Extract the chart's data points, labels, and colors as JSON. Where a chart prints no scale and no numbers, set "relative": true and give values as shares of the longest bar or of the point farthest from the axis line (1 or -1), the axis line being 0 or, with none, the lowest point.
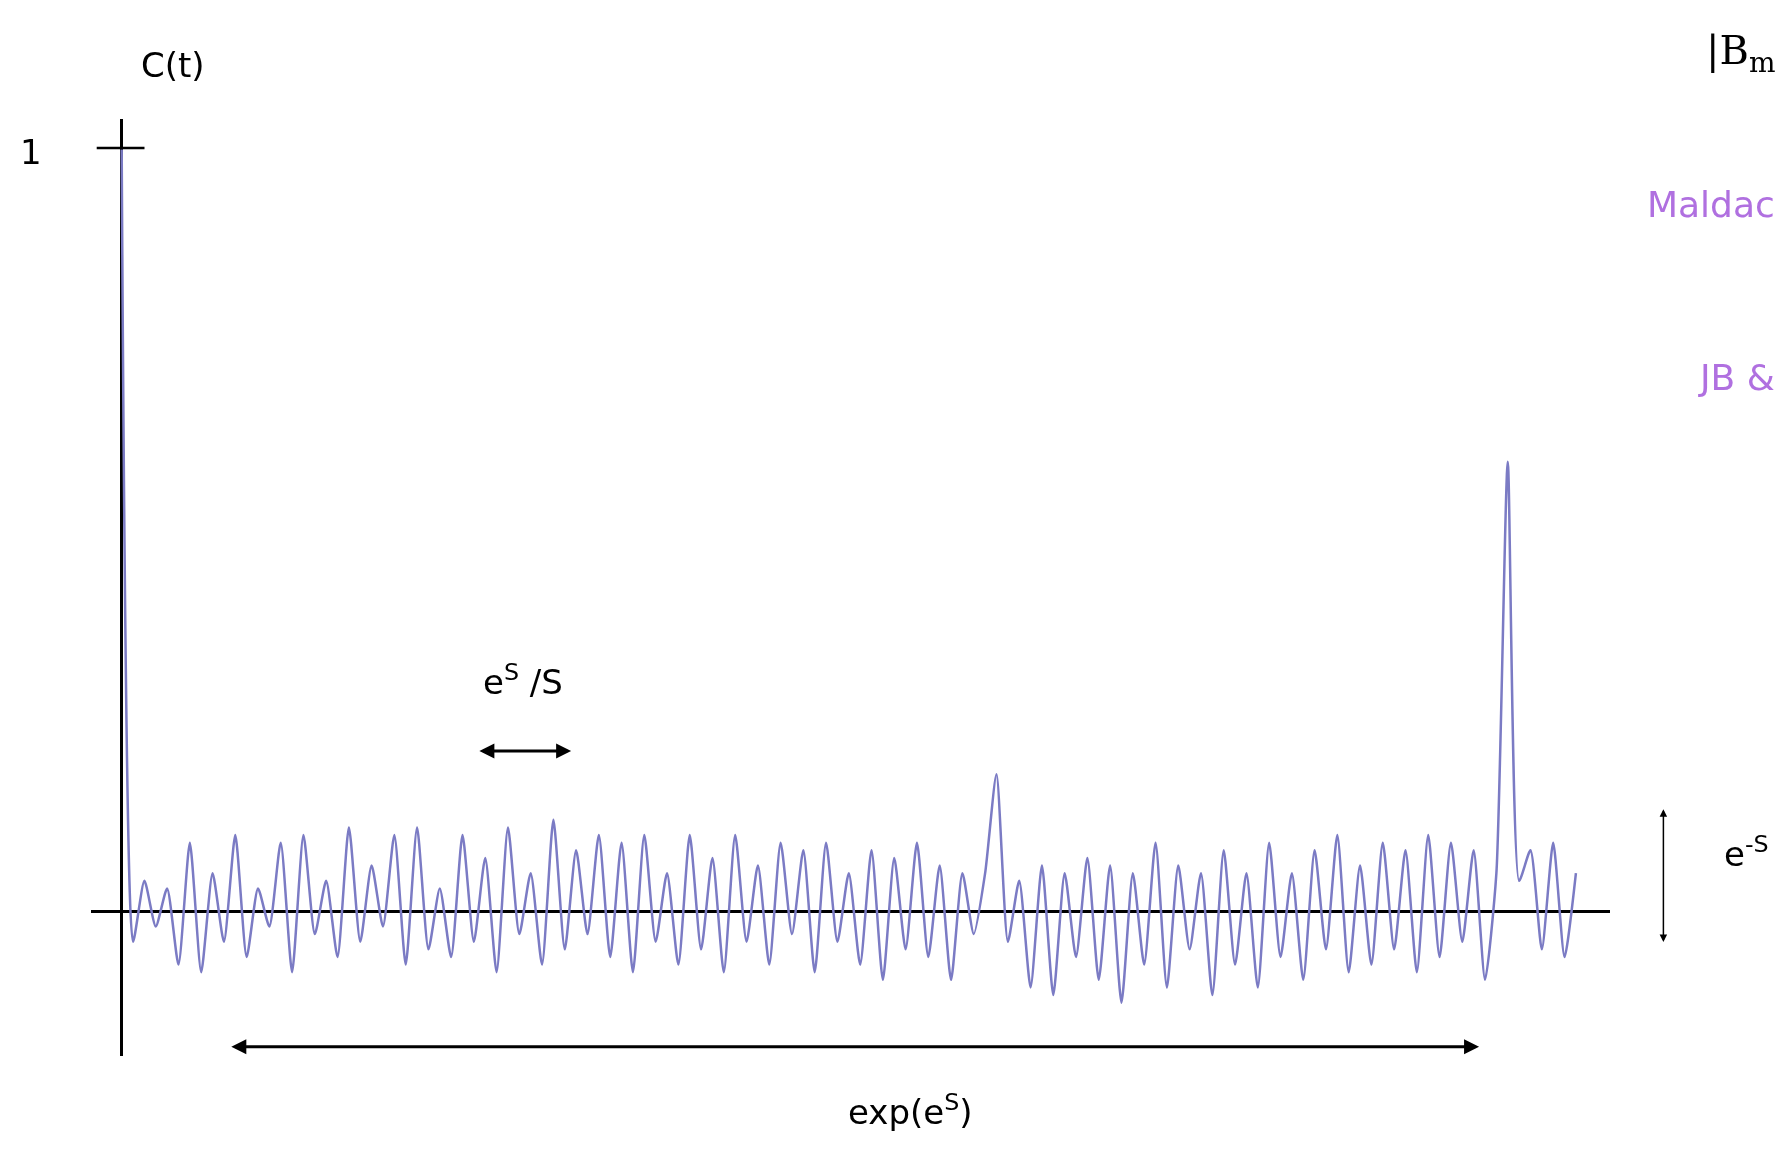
{
  "chart_data": {
    "type": "line",
    "relative": true,
    "ylabel": "C(t)",
    "categories": [
      null,
      null,
      null,
      null,
      null,
      null,
      null,
      null,
      null,
      null,
      null,
      null,
      null,
      null,
      null,
      null,
      null,
      null,
      null,
      null,
      null,
      null,
      null,
      null,
      null,
      null,
      null,
      null,
      null,
      null,
      null,
      null,
      null,
      null,
      null,
      null,
      null,
      null,
      null,
      null,
      null,
      null,
      null,
      null,
      null,
      null,
      null,
      null,
      null,
      null,
      null,
      null,
      null,
      null,
      null,
      null,
      null,
      null,
      null,
      null,
      null,
      null,
      null,
      null,
      null,
      null,
      null,
      null,
      null,
      null,
      null,
      null,
      null,
      null,
      null,
      null,
      null,
      null,
      null,
      null,
      null,
      null,
      null,
      null,
      null,
      null,
      null,
      null,
      null,
      null,
      null,
      null,
      null,
      null,
      null,
      null,
      null,
      null,
      null,
      null,
      null,
      null,
      null,
      null,
      null,
      null,
      null,
      null,
      null,
      null,
      null,
      null,
      null,
      null,
      null,
      null,
      null,
      null,
      null,
      null,
      null,
      null,
      null,
      null,
      null,
      null,
      null,
      null,
      null
    ],
    "series": [
      {
        "color": "#7b7bc4",
        "values": [
          1.0,
          -0.04,
          0.04,
          -0.02,
          0.03,
          -0.07,
          0.09,
          -0.08,
          0.05,
          -0.04,
          0.1,
          -0.06,
          0.03,
          -0.02,
          0.09,
          -0.08,
          0.1,
          -0.03,
          0.04,
          -0.06,
          0.11,
          -0.04,
          0.06,
          -0.02,
          0.1,
          -0.07,
          0.11,
          -0.05,
          0.03,
          -0.06,
          0.1,
          -0.04,
          0.07,
          -0.08,
          0.11,
          -0.03,
          0.05,
          -0.07,
          0.12,
          -0.05,
          0.08,
          -0.03,
          0.1,
          -0.06,
          0.09,
          -0.08,
          0.1,
          -0.04,
          0.05,
          -0.07,
          0.1,
          -0.05,
          0.07,
          -0.08,
          0.1,
          -0.04,
          0.06,
          -0.07,
          0.09,
          -0.03,
          0.08,
          -0.08,
          0.09,
          -0.04,
          0.05,
          -0.07,
          0.08,
          -0.09,
          0.07,
          -0.05,
          0.09,
          -0.06,
          0.06,
          -0.09,
          0.05,
          -0.03,
          0.05,
          0.18,
          -0.04,
          0.04,
          -0.1,
          0.06,
          -0.11,
          0.05,
          -0.06,
          0.07,
          -0.09,
          0.06,
          -0.12,
          0.05,
          -0.07,
          0.09,
          -0.1,
          0.06,
          -0.05,
          0.05,
          -0.11,
          0.08,
          -0.07,
          0.05,
          -0.1,
          0.09,
          -0.06,
          0.05,
          -0.09,
          0.08,
          -0.05,
          0.1,
          -0.08,
          0.06,
          -0.07,
          0.09,
          -0.05,
          0.08,
          -0.08,
          0.1,
          -0.06,
          0.09,
          -0.04,
          0.08,
          -0.09,
          0.05,
          0.59,
          0.04,
          0.08,
          -0.05,
          0.09,
          -0.06,
          0.05
        ]
      }
    ],
    "annotations": [
      "1",
      "e$^{S}$ /S",
      "exp(e$^{S}$)",
      "e$^{-S}$",
      "|B$_{m}$",
      "Maldac",
      "JB &"
    ],
    "marker": "none",
    "line_style": "solid"
  }
}
